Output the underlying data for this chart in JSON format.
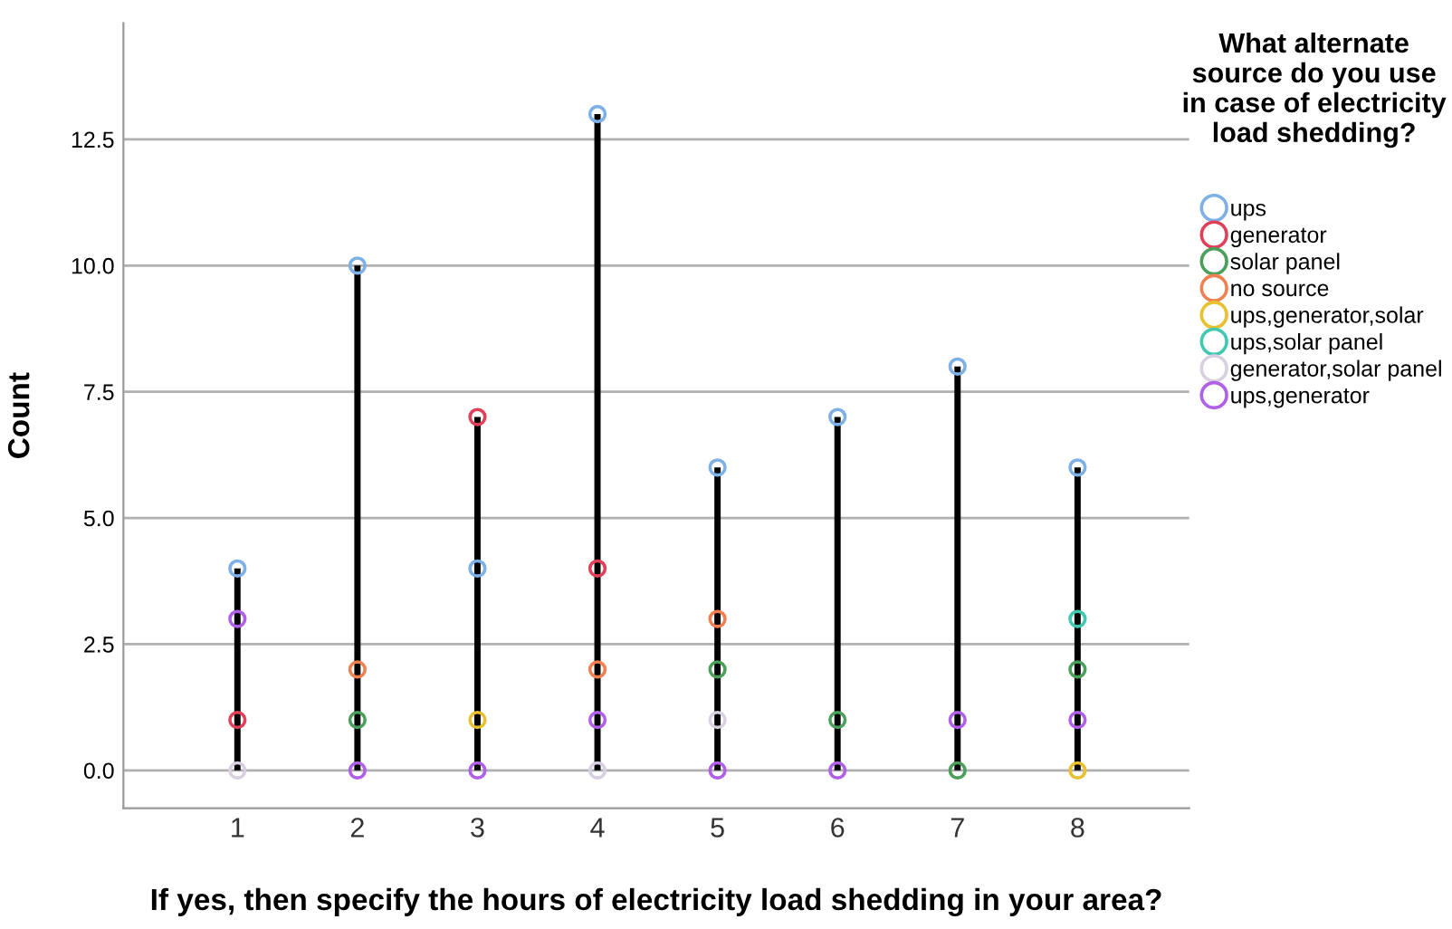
{
  "chart_data": {
    "type": "scatter",
    "xlabel": "If yes, then specify the hours of electricity load shedding in your area?",
    "ylabel": "Count",
    "legend_title": "What alternate source do you use in case of electricity load shedding?",
    "categories": [
      "1",
      "2",
      "3",
      "4",
      "5",
      "6",
      "7",
      "8"
    ],
    "ylim": [
      -0.75,
      14.8
    ],
    "yticks": [
      {
        "value": 0,
        "label": "0.0"
      },
      {
        "value": 2.5,
        "label": "2.5"
      },
      {
        "value": 5,
        "label": "5.0"
      },
      {
        "value": 7.5,
        "label": "7.5"
      },
      {
        "value": 10,
        "label": "10.0"
      },
      {
        "value": 12.5,
        "label": "12.5"
      }
    ],
    "grid": "y",
    "legend": "right",
    "marker": "circle",
    "series": [
      {
        "name": "ups",
        "color": "#7eb0e8",
        "values": [
          4,
          10,
          4,
          13,
          6,
          7,
          8,
          6
        ]
      },
      {
        "name": "generator",
        "color": "#e0405a",
        "values": [
          1,
          null,
          7,
          4,
          null,
          null,
          null,
          null
        ]
      },
      {
        "name": "solar panel",
        "color": "#4aa05a",
        "values": [
          null,
          1,
          null,
          null,
          2,
          1,
          0,
          2
        ]
      },
      {
        "name": "no source",
        "color": "#f08050",
        "values": [
          null,
          2,
          null,
          2,
          3,
          null,
          null,
          null
        ]
      },
      {
        "name": "ups,generator,solar",
        "color": "#e8c030",
        "values": [
          null,
          null,
          1,
          null,
          null,
          null,
          null,
          0
        ]
      },
      {
        "name": "ups,solar panel",
        "color": "#40c8b0",
        "values": [
          null,
          null,
          null,
          null,
          null,
          null,
          null,
          3
        ]
      },
      {
        "name": "generator,solar panel",
        "color": "#d8d0e0",
        "values": [
          0,
          null,
          null,
          0,
          1,
          null,
          null,
          null
        ]
      },
      {
        "name": "ups,generator",
        "color": "#b060e8",
        "values": [
          3,
          0,
          0,
          1,
          0,
          0,
          1,
          1
        ]
      }
    ]
  }
}
